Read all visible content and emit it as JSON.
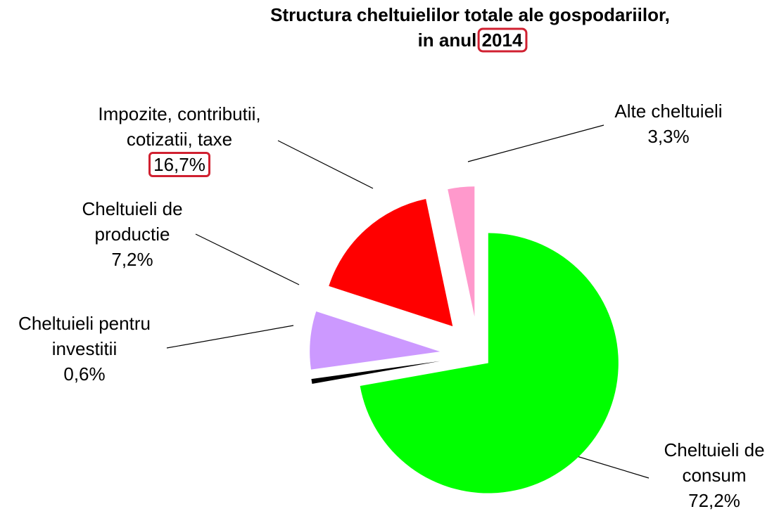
{
  "chart_data": {
    "type": "pie",
    "title": [
      "Structura cheltuielilor totale ale gospodariilor,",
      "in anul 2014"
    ],
    "categories": [
      "Cheltuieli de consum",
      "Cheltuieli pentru investitii",
      "Cheltuieli de productie",
      "Impozite, contributii, cotizatii, taxe",
      "Alte cheltuieli"
    ],
    "values": [
      72.2,
      0.6,
      7.2,
      16.7,
      3.3
    ],
    "value_labels": [
      "72,2%",
      "0,6%",
      "7,2%",
      "16,7%",
      "3,3%"
    ],
    "colors": [
      "#00ff00",
      "#000000",
      "#cc99ff",
      "#ff0000",
      "#ff99cc"
    ]
  }
}
